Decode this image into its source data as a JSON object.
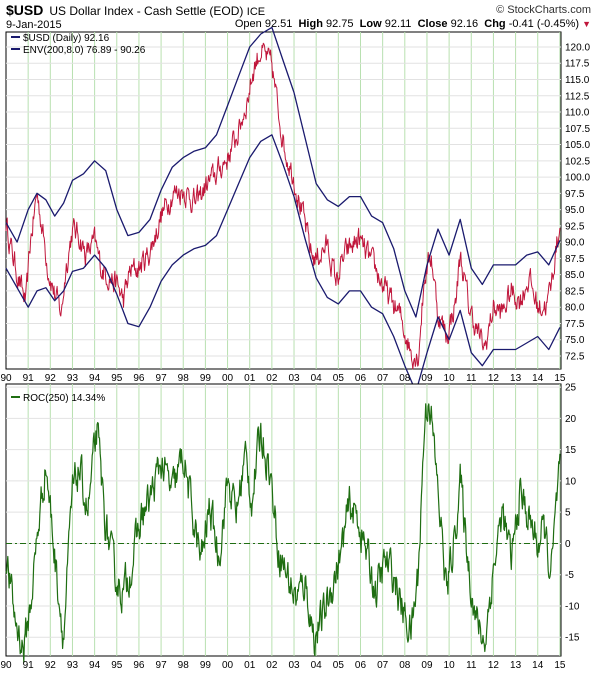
{
  "header": {
    "symbol": "$USD",
    "title": "US Dollar Index - Cash Settle (EOD)",
    "exchange": "ICE",
    "credit": "© StockCharts.com",
    "date": "9-Jan-2015",
    "open_label": "Open",
    "open": "92.51",
    "high_label": "High",
    "high": "92.75",
    "low_label": "Low",
    "low": "92.11",
    "close_label": "Close",
    "close": "92.16",
    "chg_label": "Chg",
    "chg": "-0.41 (-0.45%)",
    "chg_arrow": "▼"
  },
  "colors": {
    "price_line": "#c0163b",
    "price_up": "#2f6b1e",
    "envelope": "#1a1a6e",
    "roc_line": "#1f6e12",
    "grid_vertical": "#b8e0b0",
    "grid_horizontal": "#e2e2e2",
    "zero_line": "#1f6e12"
  },
  "chart_data": [
    {
      "type": "line",
      "panel": "price",
      "legend": [
        {
          "label": "$USD (Daily) 92.16",
          "swatch": "price"
        },
        {
          "label": "ENV(200,8.0) 76.89 - 90.26",
          "swatch": "envelope"
        }
      ],
      "x_ticks": [
        "90",
        "91",
        "92",
        "93",
        "94",
        "95",
        "96",
        "97",
        "98",
        "99",
        "00",
        "01",
        "02",
        "03",
        "04",
        "05",
        "06",
        "07",
        "08",
        "09",
        "10",
        "11",
        "12",
        "13",
        "14",
        "15"
      ],
      "y_ticks": [
        "72.5",
        "75.0",
        "77.5",
        "80.0",
        "82.5",
        "85.0",
        "87.5",
        "90.0",
        "92.5",
        "95.0",
        "97.5",
        "100.0",
        "102.5",
        "105.0",
        "107.5",
        "110.0",
        "112.5",
        "115.0",
        "117.5",
        "120.0"
      ],
      "ylim": [
        70.5,
        122.3
      ],
      "x_range": [
        1990.0,
        2015.05
      ],
      "series": [
        {
          "name": "$USD (Daily) 92.16",
          "x": [
            1990.0,
            1990.3,
            1990.6,
            1990.9,
            1991.1,
            1991.4,
            1991.6,
            1991.9,
            1992.2,
            1992.5,
            1992.7,
            1993.0,
            1993.3,
            1993.6,
            1994.0,
            1994.3,
            1994.6,
            1995.0,
            1995.3,
            1995.6,
            1996.0,
            1996.5,
            1997.0,
            1997.5,
            1998.0,
            1998.6,
            1999.0,
            1999.5,
            2000.0,
            2000.5,
            2000.9,
            2001.2,
            2001.5,
            2002.0,
            2002.3,
            2002.6,
            2003.0,
            2003.4,
            2003.8,
            2004.0,
            2004.5,
            2004.9,
            2005.3,
            2005.9,
            2006.3,
            2006.8,
            2007.2,
            2007.8,
            2008.3,
            2008.6,
            2008.9,
            2009.2,
            2009.5,
            2009.9,
            2010.3,
            2010.5,
            2010.9,
            2011.3,
            2011.6,
            2012.0,
            2012.4,
            2012.8,
            2013.2,
            2013.6,
            2014.0,
            2014.4,
            2014.6,
            2014.8,
            2015.0
          ],
          "y": [
            93.0,
            88.0,
            84.0,
            80.5,
            90.0,
            97.5,
            93.0,
            86.0,
            82.0,
            79.0,
            86.0,
            92.0,
            91.0,
            88.0,
            90.0,
            86.0,
            85.0,
            83.5,
            81.0,
            85.5,
            86.0,
            88.5,
            94.0,
            97.5,
            98.0,
            96.0,
            98.5,
            100.5,
            103.0,
            107.0,
            112.0,
            117.0,
            119.5,
            117.0,
            110.0,
            104.0,
            100.0,
            94.0,
            88.0,
            87.5,
            89.5,
            84.0,
            88.0,
            90.5,
            88.0,
            85.0,
            82.0,
            78.5,
            73.0,
            72.5,
            85.0,
            88.0,
            79.0,
            75.5,
            81.0,
            88.0,
            80.0,
            76.0,
            73.5,
            80.0,
            79.0,
            82.5,
            81.0,
            84.5,
            80.0,
            80.5,
            83.0,
            88.5,
            92.16
          ]
        },
        {
          "name": "Upper envelope",
          "x": [
            1990.0,
            1990.5,
            1991.0,
            1991.4,
            1991.8,
            1992.2,
            1992.6,
            1993.0,
            1993.5,
            1994.0,
            1994.5,
            1995.0,
            1995.5,
            1996.0,
            1996.5,
            1997.0,
            1997.5,
            1998.0,
            1998.5,
            1999.0,
            1999.5,
            2000.0,
            2000.5,
            2001.0,
            2001.5,
            2002.0,
            2002.5,
            2003.0,
            2003.5,
            2004.0,
            2004.5,
            2005.0,
            2005.5,
            2006.0,
            2006.5,
            2007.0,
            2007.5,
            2008.0,
            2008.5,
            2009.0,
            2009.5,
            2010.0,
            2010.5,
            2011.0,
            2011.5,
            2012.0,
            2012.5,
            2013.0,
            2013.5,
            2014.0,
            2014.5,
            2015.0
          ],
          "y": [
            93.0,
            90.0,
            95.0,
            97.5,
            96.5,
            94.0,
            96.0,
            99.5,
            100.5,
            102.5,
            101.0,
            95.0,
            91.0,
            91.5,
            93.5,
            98.0,
            101.5,
            103.0,
            104.0,
            104.5,
            106.5,
            111.0,
            115.5,
            120.0,
            122.0,
            123.0,
            118.0,
            113.0,
            106.0,
            99.0,
            96.5,
            95.5,
            97.0,
            97.0,
            94.0,
            93.0,
            89.0,
            82.5,
            78.5,
            86.5,
            92.0,
            88.0,
            93.5,
            86.0,
            83.5,
            86.5,
            86.5,
            86.5,
            88.0,
            88.5,
            86.5,
            90.26
          ]
        },
        {
          "name": "Lower envelope",
          "x": [
            1990.0,
            1990.5,
            1991.0,
            1991.4,
            1991.8,
            1992.2,
            1992.6,
            1993.0,
            1993.5,
            1994.0,
            1994.5,
            1995.0,
            1995.5,
            1996.0,
            1996.5,
            1997.0,
            1997.5,
            1998.0,
            1998.5,
            1999.0,
            1999.5,
            2000.0,
            2000.5,
            2001.0,
            2001.5,
            2002.0,
            2002.5,
            2003.0,
            2003.5,
            2004.0,
            2004.5,
            2005.0,
            2005.5,
            2006.0,
            2006.5,
            2007.0,
            2007.5,
            2008.0,
            2008.5,
            2009.0,
            2009.5,
            2010.0,
            2010.5,
            2011.0,
            2011.5,
            2012.0,
            2012.5,
            2013.0,
            2013.5,
            2014.0,
            2014.5,
            2015.0
          ],
          "y": [
            86.0,
            83.0,
            80.0,
            82.5,
            83.0,
            81.0,
            82.5,
            85.5,
            86.0,
            88.0,
            86.0,
            82.0,
            77.5,
            77.0,
            80.0,
            84.0,
            86.5,
            88.0,
            89.0,
            89.5,
            91.0,
            95.0,
            99.0,
            103.0,
            105.5,
            106.5,
            102.0,
            97.0,
            90.5,
            84.5,
            81.5,
            80.5,
            82.5,
            82.5,
            80.0,
            79.0,
            75.5,
            71.0,
            67.0,
            73.0,
            78.5,
            75.0,
            79.5,
            73.0,
            71.0,
            73.5,
            73.5,
            73.5,
            74.5,
            75.5,
            73.5,
            76.89
          ]
        }
      ]
    },
    {
      "type": "line",
      "panel": "roc",
      "legend": [
        {
          "label": "ROC(250) 14.34%",
          "swatch": "roc"
        }
      ],
      "x_ticks": [
        "90",
        "91",
        "92",
        "93",
        "94",
        "95",
        "96",
        "97",
        "98",
        "99",
        "00",
        "01",
        "02",
        "03",
        "04",
        "05",
        "06",
        "07",
        "08",
        "09",
        "10",
        "11",
        "12",
        "13",
        "14",
        "15"
      ],
      "y_ticks": [
        "-15",
        "-10",
        "-5",
        "0",
        "5",
        "10",
        "15",
        "20",
        "25"
      ],
      "ylim": [
        -18.0,
        25.5
      ],
      "x_range": [
        1990.0,
        2015.05
      ],
      "series": [
        {
          "name": "ROC(250) 14.34%",
          "x": [
            1990.0,
            1990.4,
            1990.8,
            1991.1,
            1991.5,
            1991.8,
            1992.2,
            1992.6,
            1993.0,
            1993.3,
            1993.7,
            1994.1,
            1994.5,
            1994.9,
            1995.3,
            1995.7,
            1996.1,
            1996.5,
            1997.0,
            1997.5,
            1998.0,
            1998.4,
            1998.8,
            1999.2,
            1999.6,
            2000.0,
            2000.4,
            2000.8,
            2001.1,
            2001.5,
            2001.9,
            2002.3,
            2002.7,
            2003.1,
            2003.5,
            2003.9,
            2004.3,
            2004.7,
            2005.1,
            2005.5,
            2005.9,
            2006.3,
            2006.7,
            2007.1,
            2007.5,
            2007.9,
            2008.3,
            2008.6,
            2008.9,
            2009.1,
            2009.5,
            2009.9,
            2010.2,
            2010.5,
            2010.9,
            2011.2,
            2011.6,
            2012.0,
            2012.4,
            2012.8,
            2013.2,
            2013.6,
            2014.0,
            2014.3,
            2014.6,
            2014.9,
            2015.0
          ],
          "y": [
            -2.0,
            -12.0,
            -17.0,
            -10.0,
            4.0,
            13.0,
            -2.0,
            -15.0,
            8.0,
            12.0,
            5.0,
            18.0,
            3.0,
            -5.0,
            -8.0,
            -3.0,
            4.0,
            7.0,
            13.0,
            8.0,
            14.0,
            5.0,
            -3.0,
            6.0,
            -2.0,
            10.0,
            5.0,
            14.0,
            7.0,
            18.0,
            12.0,
            -1.0,
            -5.0,
            -9.0,
            -6.0,
            -15.0,
            -12.0,
            -7.0,
            -2.0,
            6.0,
            4.0,
            -2.0,
            -8.0,
            -3.0,
            -5.0,
            -11.0,
            -14.0,
            -5.0,
            20.0,
            24.0,
            8.0,
            -8.0,
            0.0,
            10.0,
            -4.0,
            -12.0,
            -16.0,
            -4.0,
            5.0,
            -3.0,
            8.0,
            4.0,
            0.0,
            2.0,
            -5.0,
            8.0,
            14.34
          ]
        }
      ]
    }
  ]
}
